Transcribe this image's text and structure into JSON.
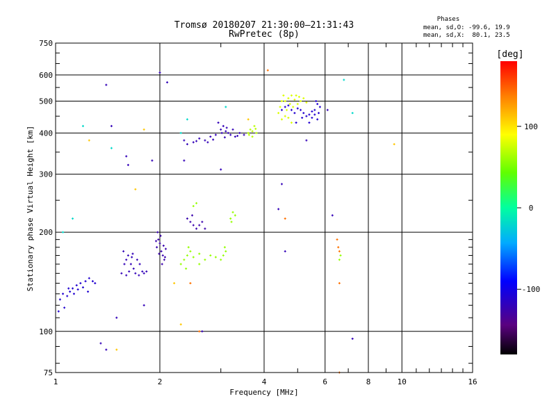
{
  "chart_data": {
    "type": "scatter",
    "title": "Tromsø 20180207 21:30:00–21:31:43",
    "subtitle": "RwPretec (8p)",
    "xlabel": "Frequency [MHz]",
    "ylabel": "Stationary phase Virtual Height [km]",
    "x_scale": "log",
    "y_scale": "log",
    "xlim": [
      1,
      16
    ],
    "ylim": [
      75,
      750
    ],
    "x_ticks": [
      {
        "label": "1",
        "value": 1
      },
      {
        "label": "2",
        "value": 2
      },
      {
        "label": "4",
        "value": 4
      },
      {
        "label": "6",
        "value": 6
      },
      {
        "label": "8",
        "value": 8
      },
      {
        "label": "10",
        "value": 10
      },
      {
        "label": "16",
        "value": 16
      }
    ],
    "y_ticks": [
      {
        "label": "75",
        "value": 75
      },
      {
        "label": "100",
        "value": 100
      },
      {
        "label": "200",
        "value": 200
      },
      {
        "label": "300",
        "value": 300
      },
      {
        "label": "400",
        "value": 400
      },
      {
        "label": "500",
        "value": 500
      },
      {
        "label": "600",
        "value": 600
      },
      {
        "label": "750",
        "value": 750
      }
    ],
    "grid": true,
    "stats": {
      "heading": "Phases",
      "line_o": "mean, sd,O: -99.6, 19.9",
      "line_x": "mean, sd,X:  80.1, 23.5"
    },
    "colorbar": {
      "label": "[deg]",
      "range": [
        -180,
        180
      ],
      "ticks": [
        {
          "label": "100",
          "value": 100
        },
        {
          "label": "0",
          "value": 0
        },
        {
          "label": "-100",
          "value": -100
        }
      ]
    },
    "series": [
      {
        "phase": -110,
        "points": [
          [
            1.03,
            125
          ],
          [
            1.05,
            130
          ],
          [
            1.08,
            128
          ],
          [
            1.1,
            132
          ],
          [
            1.12,
            135
          ],
          [
            1.15,
            138
          ],
          [
            1.18,
            140
          ],
          [
            1.22,
            142
          ],
          [
            1.25,
            145
          ],
          [
            1.28,
            142
          ],
          [
            1.02,
            115
          ],
          [
            1.06,
            118
          ],
          [
            1.09,
            135
          ],
          [
            1.13,
            130
          ],
          [
            1.2,
            136
          ],
          [
            1.3,
            140
          ],
          [
            1.24,
            132
          ],
          [
            1.16,
            134
          ]
        ]
      },
      {
        "phase": -120,
        "points": [
          [
            1.55,
            150
          ],
          [
            1.58,
            160
          ],
          [
            1.6,
            165
          ],
          [
            1.62,
            170
          ],
          [
            1.65,
            160
          ],
          [
            1.68,
            155
          ],
          [
            1.7,
            150
          ],
          [
            1.72,
            165
          ],
          [
            1.75,
            160
          ],
          [
            1.78,
            152
          ],
          [
            1.8,
            150
          ],
          [
            1.57,
            175
          ],
          [
            1.63,
            152
          ],
          [
            1.67,
            172
          ],
          [
            1.74,
            148
          ],
          [
            1.6,
            148
          ],
          [
            1.66,
            168
          ],
          [
            1.83,
            152
          ]
        ]
      },
      {
        "phase": -125,
        "points": [
          [
            1.96,
            180
          ],
          [
            1.98,
            190
          ],
          [
            2.0,
            185
          ],
          [
            2.02,
            175
          ],
          [
            2.04,
            170
          ],
          [
            2.06,
            165
          ],
          [
            1.97,
            200
          ],
          [
            2.01,
            195
          ],
          [
            2.05,
            182
          ],
          [
            2.08,
            178
          ],
          [
            1.99,
            172
          ],
          [
            2.03,
            160
          ],
          [
            2.07,
            168
          ],
          [
            1.95,
            188
          ]
        ]
      },
      {
        "phase": -120,
        "points": [
          [
            2.35,
            380
          ],
          [
            2.4,
            370
          ],
          [
            2.5,
            375
          ],
          [
            2.6,
            385
          ],
          [
            2.7,
            380
          ],
          [
            2.8,
            390
          ],
          [
            2.9,
            395
          ],
          [
            3.0,
            410
          ],
          [
            3.05,
            420
          ],
          [
            3.1,
            405
          ],
          [
            3.15,
            400
          ],
          [
            3.2,
            395
          ],
          [
            3.3,
            390
          ],
          [
            3.4,
            400
          ],
          [
            3.5,
            395
          ],
          [
            2.95,
            430
          ],
          [
            3.02,
            400
          ],
          [
            3.12,
            415
          ],
          [
            2.75,
            375
          ],
          [
            2.55,
            378
          ],
          [
            3.25,
            410
          ],
          [
            3.08,
            388
          ],
          [
            2.85,
            382
          ],
          [
            3.35,
            392
          ]
        ]
      },
      {
        "phase": -125,
        "points": [
          [
            2.4,
            220
          ],
          [
            2.45,
            215
          ],
          [
            2.5,
            210
          ],
          [
            2.55,
            205
          ],
          [
            2.6,
            210
          ],
          [
            2.65,
            215
          ],
          [
            2.7,
            205
          ],
          [
            2.48,
            225
          ]
        ]
      },
      {
        "phase": -110,
        "points": [
          [
            4.5,
            470
          ],
          [
            4.6,
            480
          ],
          [
            4.7,
            485
          ],
          [
            4.8,
            470
          ],
          [
            4.9,
            460
          ],
          [
            5.0,
            475
          ],
          [
            5.1,
            470
          ],
          [
            5.2,
            460
          ],
          [
            5.3,
            450
          ],
          [
            5.4,
            455
          ],
          [
            5.5,
            465
          ],
          [
            5.6,
            470
          ],
          [
            5.7,
            490
          ],
          [
            5.8,
            480
          ],
          [
            5.5,
            445
          ],
          [
            5.6,
            455
          ],
          [
            5.7,
            440
          ],
          [
            5.4,
            430
          ],
          [
            5.75,
            460
          ],
          [
            5.65,
            500
          ],
          [
            4.95,
            430
          ],
          [
            5.15,
            445
          ]
        ]
      },
      {
        "phase": 80,
        "points": [
          [
            4.4,
            460
          ],
          [
            4.45,
            480
          ],
          [
            4.5,
            500
          ],
          [
            4.55,
            520
          ],
          [
            4.6,
            500
          ],
          [
            4.65,
            470
          ],
          [
            4.7,
            510
          ],
          [
            4.75,
            490
          ],
          [
            4.8,
            520
          ],
          [
            4.85,
            480
          ],
          [
            4.9,
            505
          ],
          [
            4.95,
            520
          ],
          [
            5.0,
            490
          ],
          [
            5.05,
            515
          ],
          [
            5.1,
            500
          ],
          [
            5.2,
            510
          ],
          [
            5.3,
            495
          ],
          [
            4.5,
            440
          ],
          [
            4.6,
            450
          ],
          [
            4.7,
            445
          ],
          [
            4.8,
            430
          ]
        ]
      },
      {
        "phase": 60,
        "points": [
          [
            2.3,
            160
          ],
          [
            2.35,
            165
          ],
          [
            2.4,
            170
          ],
          [
            2.45,
            175
          ],
          [
            2.5,
            168
          ],
          [
            2.6,
            172
          ],
          [
            2.7,
            165
          ],
          [
            2.8,
            170
          ],
          [
            2.9,
            168
          ],
          [
            3.0,
            165
          ],
          [
            3.05,
            170
          ],
          [
            3.1,
            175
          ],
          [
            3.08,
            180
          ],
          [
            2.42,
            180
          ],
          [
            2.38,
            155
          ],
          [
            2.6,
            160
          ]
        ]
      },
      {
        "phase": 70,
        "points": [
          [
            3.6,
            400
          ],
          [
            3.65,
            410
          ],
          [
            3.7,
            405
          ],
          [
            3.75,
            420
          ],
          [
            3.8,
            400
          ],
          [
            3.7,
            390
          ],
          [
            3.62,
            395
          ],
          [
            3.78,
            412
          ]
        ]
      },
      {
        "phase": 60,
        "points": [
          [
            3.2,
            220
          ],
          [
            3.25,
            230
          ],
          [
            3.3,
            225
          ],
          [
            3.22,
            215
          ],
          [
            2.5,
            240
          ],
          [
            2.55,
            245
          ],
          [
            6.6,
            165
          ],
          [
            6.65,
            170
          ]
        ]
      },
      {
        "phase": 140,
        "points": [
          [
            4.1,
            620
          ],
          [
            6.5,
            190
          ],
          [
            6.55,
            180
          ],
          [
            6.6,
            175
          ],
          [
            4.6,
            220
          ],
          [
            2.6,
            100
          ],
          [
            2.45,
            140
          ],
          [
            6.6,
            140
          ],
          [
            6.6,
            75
          ]
        ]
      },
      {
        "phase": -20,
        "points": [
          [
            1.05,
            200
          ],
          [
            1.12,
            220
          ],
          [
            1.45,
            360
          ],
          [
            2.3,
            400
          ],
          [
            2.4,
            440
          ],
          [
            6.8,
            580
          ],
          [
            7.2,
            460
          ],
          [
            3.1,
            480
          ],
          [
            1.2,
            420
          ]
        ]
      },
      {
        "phase": -120,
        "points": [
          [
            1.4,
            560
          ],
          [
            2.0,
            610
          ],
          [
            2.1,
            570
          ],
          [
            1.45,
            420
          ],
          [
            1.6,
            340
          ],
          [
            1.62,
            320
          ],
          [
            2.35,
            330
          ],
          [
            4.5,
            280
          ],
          [
            4.4,
            235
          ],
          [
            4.6,
            175
          ],
          [
            5.3,
            380
          ],
          [
            6.3,
            225
          ],
          [
            7.2,
            95
          ],
          [
            1.35,
            92
          ],
          [
            1.4,
            88
          ],
          [
            3.0,
            310
          ],
          [
            2.65,
            100
          ],
          [
            1.5,
            110
          ],
          [
            1.8,
            120
          ],
          [
            1.9,
            330
          ],
          [
            6.1,
            470
          ]
        ]
      },
      {
        "phase": 110,
        "points": [
          [
            9.5,
            370
          ],
          [
            1.5,
            88
          ],
          [
            1.7,
            270
          ],
          [
            2.2,
            140
          ],
          [
            2.3,
            105
          ],
          [
            1.25,
            380
          ],
          [
            1.8,
            410
          ],
          [
            3.6,
            440
          ]
        ]
      }
    ]
  }
}
